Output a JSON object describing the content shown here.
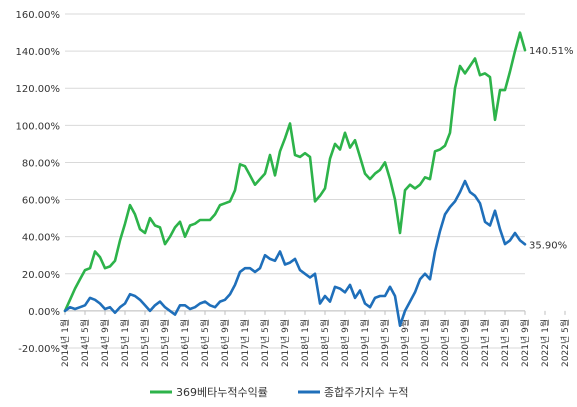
{
  "chart_data": {
    "type": "line",
    "title": "",
    "xlabel": "",
    "ylabel": "",
    "ylim": [
      -20,
      160
    ],
    "yticks": [
      "160.00%",
      "140.00%",
      "120.00%",
      "100.00%",
      "80.00%",
      "60.00%",
      "40.00%",
      "20.00%",
      "0.00%",
      "-20.00%"
    ],
    "grid": "horizontal",
    "legend_position": "bottom",
    "xticks": [
      "2014년 1월",
      "2014년 5월",
      "2014년 9월",
      "2015년 1월",
      "2015년 5월",
      "2015년 9월",
      "2016년 1월",
      "2016년 5월",
      "2016년 9월",
      "2017년 1월",
      "2017년 5월",
      "2017년 9월",
      "2018년 1월",
      "2018년 5월",
      "2018년 9월",
      "2019년 1월",
      "2019년 5월",
      "2019년 9월",
      "2020년 1월",
      "2020년 5월",
      "2020년 9월",
      "2021년 1월",
      "2021년 5월",
      "2021년 9월",
      "2022년 1월",
      "2022년 5월"
    ],
    "end_labels": [
      "140.51%",
      "35.90%"
    ],
    "series": [
      {
        "name": "369베타누적수익률",
        "color": "#2db34a",
        "values": [
          0,
          6,
          12,
          17,
          22,
          23,
          32,
          29,
          23,
          24,
          27,
          38,
          47,
          57,
          52,
          44,
          42,
          50,
          46,
          45,
          36,
          40,
          45,
          48,
          40,
          46,
          47,
          49,
          49,
          49,
          52,
          57,
          58,
          59,
          65,
          79,
          78,
          73,
          68,
          71,
          74,
          84,
          73,
          86,
          93,
          101,
          84,
          83,
          85,
          83,
          59,
          62,
          66,
          82,
          90,
          87,
          96,
          88,
          92,
          83,
          74,
          71,
          74,
          76,
          80,
          71,
          60,
          42,
          65,
          68,
          66,
          68,
          72,
          71,
          86,
          87,
          89,
          96,
          120,
          132,
          128,
          132,
          136,
          127,
          128,
          126,
          103,
          119,
          119,
          129,
          140,
          150,
          140.51
        ]
      },
      {
        "name": "종합주가지수 누적",
        "color": "#1f6fba",
        "values": [
          0,
          2,
          1,
          2,
          3,
          7,
          6,
          4,
          1,
          2,
          -1,
          2,
          4,
          9,
          8,
          6,
          3,
          0,
          3,
          5,
          2,
          0,
          -2,
          3,
          3,
          1,
          2,
          4,
          5,
          3,
          2,
          5,
          6,
          9,
          14,
          21,
          23,
          23,
          21,
          23,
          30,
          28,
          27,
          32,
          25,
          26,
          28,
          22,
          20,
          18,
          20,
          4,
          8,
          5,
          13,
          12,
          10,
          14,
          7,
          11,
          4,
          2,
          7,
          8,
          8,
          13,
          8,
          -8,
          0,
          5,
          10,
          17,
          20,
          17,
          32,
          43,
          52,
          56,
          59,
          64,
          70,
          64,
          62,
          58,
          48,
          46,
          54,
          44,
          36,
          38,
          42,
          38,
          35.9
        ]
      }
    ]
  }
}
